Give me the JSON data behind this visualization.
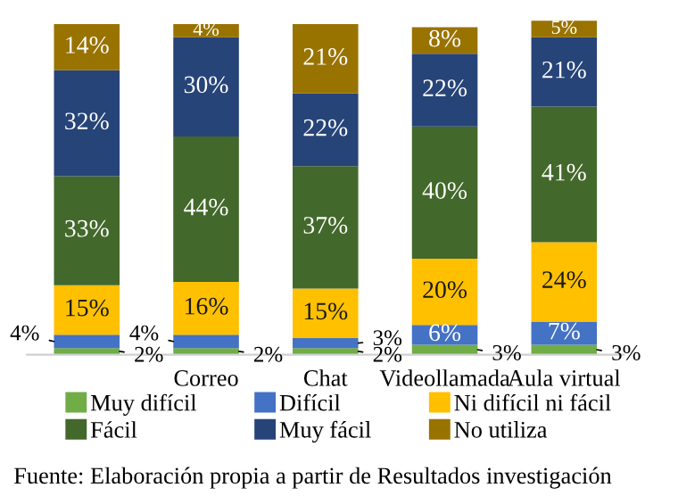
{
  "chart_data": {
    "type": "bar",
    "stacked": true,
    "categories": [
      null,
      "Correo",
      "Chat",
      "Videollamada",
      "Aula virtual"
    ],
    "series": [
      {
        "name": "Muy difícil",
        "color": "#70ad47",
        "values": [
          2,
          2,
          2,
          3,
          3
        ],
        "value_labels": [
          "2%",
          "2%",
          "2%",
          "3%",
          "3%"
        ]
      },
      {
        "name": "Difícil",
        "color": "#4472c4",
        "values": [
          4,
          4,
          3,
          6,
          7
        ],
        "value_labels": [
          "4%",
          "4%",
          "3%",
          "6%",
          "7%"
        ]
      },
      {
        "name": "Ni difícil ni fácil",
        "color": "#ffc000",
        "values": [
          15,
          16,
          15,
          20,
          24
        ],
        "value_labels": [
          "15%",
          "16%",
          "15%",
          "20%",
          "24%"
        ]
      },
      {
        "name": "Fácil",
        "color": "#43682b",
        "values": [
          33,
          44,
          37,
          40,
          41
        ],
        "value_labels": [
          "33%",
          "44%",
          "37%",
          "40%",
          "41%"
        ]
      },
      {
        "name": "Muy fácil",
        "color": "#264478",
        "values": [
          32,
          30,
          22,
          22,
          21
        ],
        "value_labels": [
          "32%",
          "30%",
          "22%",
          "22%",
          "21%"
        ]
      },
      {
        "name": "No utiliza",
        "color": "#997300",
        "values": [
          14,
          4,
          21,
          8,
          5
        ],
        "value_labels": [
          "14%",
          "4%",
          "21%",
          "8%",
          "5%"
        ]
      }
    ],
    "legend": "bottom",
    "annotations": [
      "Fuente: Elaboración propia a partir de Resultados investigación"
    ]
  }
}
